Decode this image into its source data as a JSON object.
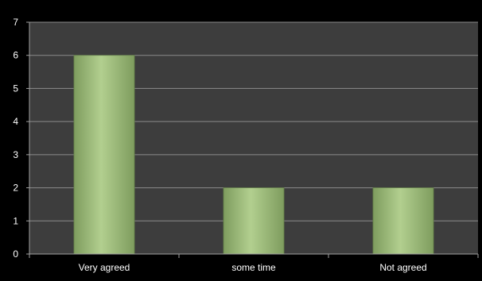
{
  "chart_data": {
    "type": "bar",
    "title": "",
    "xlabel": "",
    "ylabel": "",
    "categories": [
      "Very agreed",
      "some time",
      "Not agreed"
    ],
    "values": [
      6,
      2,
      2
    ],
    "ylim": [
      0,
      7
    ],
    "yticks": [
      0,
      1,
      2,
      3,
      4,
      5,
      6,
      7
    ],
    "grid": true,
    "legend": "none"
  },
  "colors": {
    "page_background": "#000000",
    "plot_background": "#3d3d3d",
    "gridline": "#8c8c8c",
    "axis": "#a0a0a0",
    "text": "#ffffff",
    "bar_light": "#b2cf8f",
    "bar_dark": "#7e9c5e",
    "bar_edge": "#5f7a44"
  }
}
